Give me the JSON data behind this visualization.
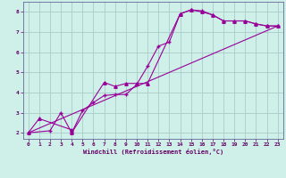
{
  "xlabel": "Windchill (Refroidissement éolien,°C)",
  "bg_color": "#cef0e8",
  "line_color": "#990099",
  "grid_color": "#a8ccc8",
  "xlim": [
    -0.5,
    23.5
  ],
  "ylim": [
    1.7,
    8.5
  ],
  "xticks": [
    0,
    1,
    2,
    3,
    4,
    5,
    6,
    7,
    8,
    9,
    10,
    11,
    12,
    13,
    14,
    15,
    16,
    17,
    18,
    19,
    20,
    21,
    22,
    23
  ],
  "yticks": [
    2,
    3,
    4,
    5,
    6,
    7,
    8
  ],
  "line1_x": [
    0,
    1,
    4,
    4,
    7,
    8,
    9,
    10,
    11,
    14,
    15,
    16,
    17,
    18,
    19,
    20,
    21,
    22,
    23
  ],
  "line1_y": [
    2.0,
    2.7,
    2.15,
    2.0,
    4.5,
    4.3,
    4.45,
    4.45,
    4.45,
    7.9,
    8.1,
    8.0,
    7.85,
    7.55,
    7.55,
    7.55,
    7.4,
    7.3,
    7.3
  ],
  "line2_x": [
    0,
    2,
    3,
    4,
    5,
    6,
    7,
    8,
    9,
    10,
    11,
    12,
    13,
    14,
    15,
    16,
    17,
    18,
    19,
    20,
    21,
    22,
    23
  ],
  "line2_y": [
    2.0,
    2.1,
    3.0,
    2.0,
    3.1,
    3.5,
    3.85,
    3.9,
    3.9,
    4.4,
    5.3,
    6.3,
    6.5,
    7.9,
    8.1,
    8.05,
    7.85,
    7.55,
    7.55,
    7.55,
    7.4,
    7.3,
    7.3
  ],
  "line3_x": [
    0,
    23
  ],
  "line3_y": [
    2.0,
    7.3
  ]
}
